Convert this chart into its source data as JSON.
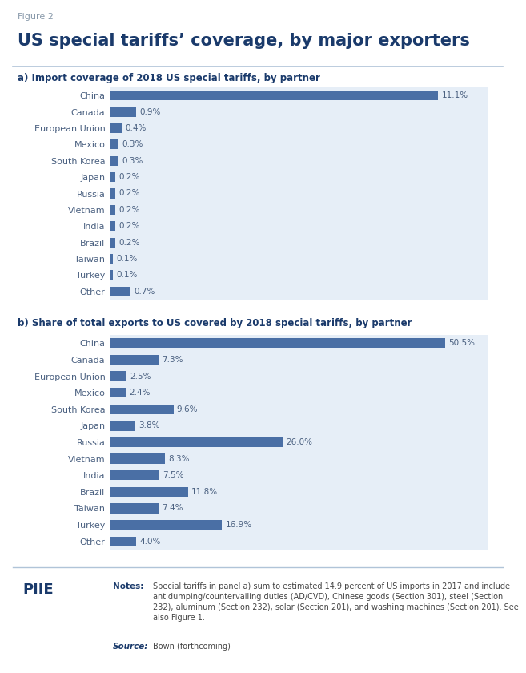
{
  "figure_label": "Figure 2",
  "title": "US special tariffs’ coverage, by major exporters",
  "panel_a_label": "a) Import coverage of 2018 US special tariffs, by partner",
  "panel_b_label": "b) Share of total exports to US covered by 2018 special tariffs, by partner",
  "categories": [
    "China",
    "Canada",
    "European Union",
    "Mexico",
    "South Korea",
    "Japan",
    "Russia",
    "Vietnam",
    "India",
    "Brazil",
    "Taiwan",
    "Turkey",
    "Other"
  ],
  "panel_a_values": [
    11.1,
    0.9,
    0.4,
    0.3,
    0.3,
    0.2,
    0.2,
    0.2,
    0.2,
    0.2,
    0.1,
    0.1,
    0.7
  ],
  "panel_a_labels": [
    "11.1%",
    "0.9%",
    "0.4%",
    "0.3%",
    "0.3%",
    "0.2%",
    "0.2%",
    "0.2%",
    "0.2%",
    "0.2%",
    "0.1%",
    "0.1%",
    "0.7%"
  ],
  "panel_b_values": [
    50.5,
    7.3,
    2.5,
    2.4,
    9.6,
    3.8,
    26.0,
    8.3,
    7.5,
    11.8,
    7.4,
    16.9,
    4.0
  ],
  "panel_b_labels": [
    "50.5%",
    "7.3%",
    "2.5%",
    "2.4%",
    "9.6%",
    "3.8%",
    "26.0%",
    "8.3%",
    "7.5%",
    "11.8%",
    "7.4%",
    "16.9%",
    "4.0%"
  ],
  "bar_color": "#4a6fa5",
  "bg_color": "#e6eef7",
  "text_color_dark": "#2c4a7c",
  "text_color_label": "#4a6080",
  "title_color": "#1a3a6b",
  "fig_label_color": "#8899aa",
  "line_color": "#b0c4d8",
  "footer_text_color": "#444444",
  "notes_text": "Special tariffs in panel a) sum to estimated 14.9 percent of US imports in 2017 and include\nantidumping/countervailing duties (AD/CVD), Chinese goods (Section 301), steel (Section\n232), aluminum (Section 232), solar (Section 201), and washing machines (Section 201). See\nalso Figure 1.",
  "source_text": "Bown (forthcoming)"
}
